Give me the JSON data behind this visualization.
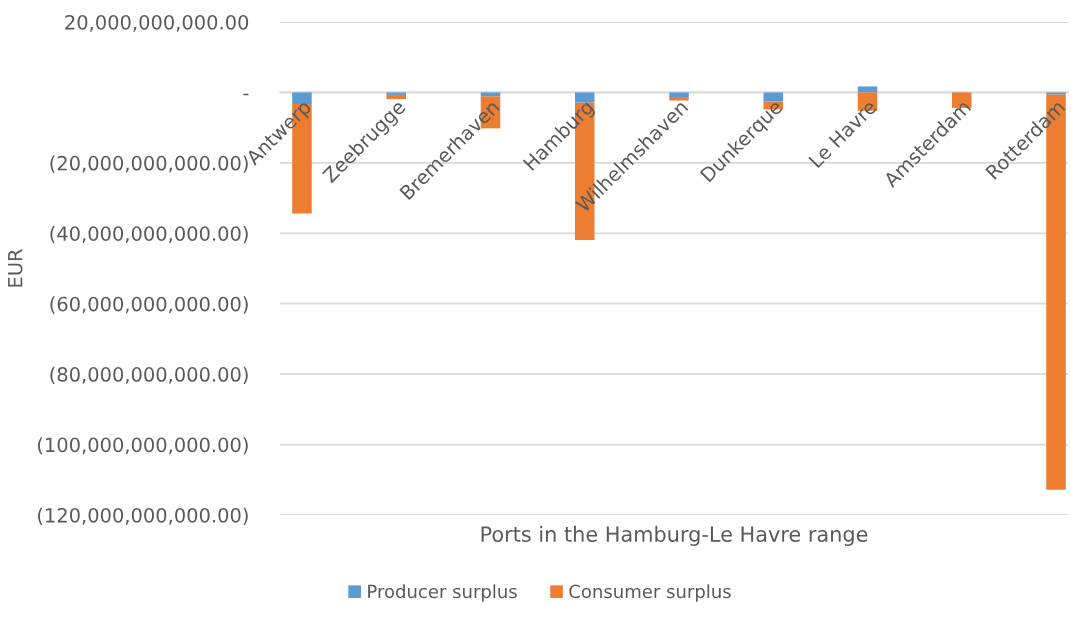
{
  "chart_data": {
    "type": "bar",
    "stacked": true,
    "xlabel": "Ports in the Hamburg-Le Havre range",
    "ylabel": "EUR",
    "categories": [
      "Antwerp",
      "Zeebrugge",
      "Bremerhaven",
      "Hamburg",
      "Wilhelmshaven",
      "Dunkerque",
      "Le Havre",
      "Amsterdam",
      "Rotterdam"
    ],
    "series": [
      {
        "name": "Producer surplus",
        "color": "#5b9bd5",
        "values": [
          -3300000000,
          -700000000,
          -1100000000,
          -2900000000,
          -1300000000,
          -2600000000,
          1700000000,
          0,
          -600000000
        ]
      },
      {
        "name": "Consumer surplus",
        "color": "#ed7d31",
        "values": [
          -31100000000,
          -1200000000,
          -9100000000,
          -39000000000,
          -1000000000,
          -2200000000,
          -5200000000,
          -4400000000,
          -112200000000
        ]
      }
    ],
    "ylim": [
      -120000000000,
      20000000000
    ],
    "yticks": [
      {
        "value": 20000000000,
        "label": "20,000,000,000.00"
      },
      {
        "value": 0,
        "label": "-"
      },
      {
        "value": -20000000000,
        "label": "(20,000,000,000.00)"
      },
      {
        "value": -40000000000,
        "label": "(40,000,000,000.00)"
      },
      {
        "value": -60000000000,
        "label": "(60,000,000,000.00)"
      },
      {
        "value": -80000000000,
        "label": "(80,000,000,000.00)"
      },
      {
        "value": -100000000000,
        "label": "(100,000,000,000.00)"
      },
      {
        "value": -120000000000,
        "label": "(120,000,000,000.00)"
      }
    ],
    "grid": "y",
    "legend": "bottom"
  }
}
